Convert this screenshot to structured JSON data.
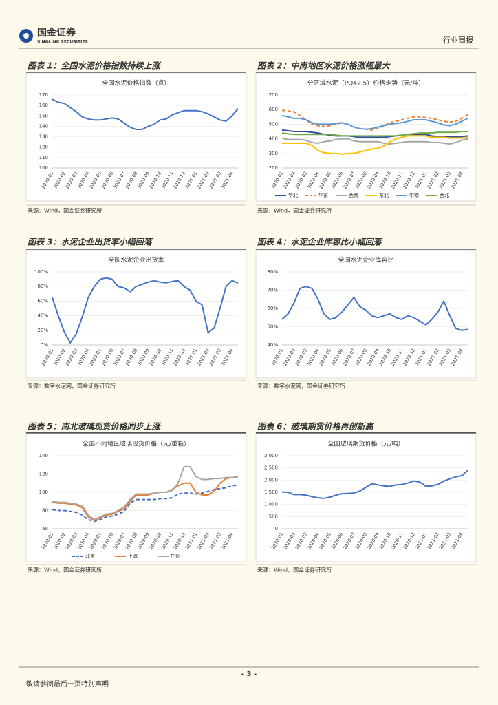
{
  "header": {
    "logo_cn": "国金证券",
    "logo_en": "SINOLINK SECURITIES",
    "section": "行业周报"
  },
  "chart_data": [
    {
      "type": "line",
      "caption": "图表 1：全国水泥价格指数持续上涨",
      "title": "全国水泥价格指数（点）",
      "source": "来源：Wind，国金证券研究所",
      "categories": [
        "2020-01",
        null,
        "2020-02",
        null,
        "2020-03",
        null,
        "2020-04",
        null,
        "2020-05",
        null,
        "2020-06",
        null,
        "2020-07",
        null,
        "2020-08",
        null,
        "2020-09",
        null,
        "2020-10",
        null,
        "2020-11",
        null,
        "2020-12",
        null,
        "2021-01",
        null,
        "2021-02",
        null,
        "2021-03",
        null,
        "2021-04",
        null
      ],
      "values": [
        166,
        163,
        162,
        158,
        154,
        149,
        147,
        146,
        146,
        147,
        148,
        147,
        143,
        139,
        137,
        137,
        140,
        142,
        146,
        147,
        151,
        153,
        155,
        155,
        155,
        154,
        152,
        149,
        146,
        145,
        150,
        157
      ],
      "color": "#4472c4",
      "ylim": [
        100,
        170
      ],
      "yticks": [
        100,
        110,
        120,
        130,
        140,
        150,
        160,
        170
      ],
      "grid": true
    },
    {
      "type": "line",
      "caption": "图表 2：中南地区水泥价格涨幅最大",
      "title": "分区域水泥（PO42.5）价格走势（元/吨）",
      "source": "来源：Wind，国金证券研究所",
      "categories": [
        "2020-01",
        null,
        "2020-02",
        null,
        "2020-03",
        null,
        "2020-04",
        null,
        "2020-05",
        null,
        "2020-06",
        null,
        "2020-07",
        null,
        "2020-08",
        null,
        "2020-09",
        null,
        "2020-10",
        null,
        "2020-11",
        null,
        "2020-12",
        null,
        "2021-01",
        null,
        "2021-02",
        null,
        "2021-03",
        null,
        "2021-04",
        null
      ],
      "series": [
        {
          "name": "华北",
          "color": "#2f4f99",
          "values": [
            460,
            455,
            450,
            450,
            450,
            445,
            440,
            430,
            425,
            420,
            420,
            420,
            415,
            410,
            410,
            410,
            410,
            410,
            415,
            420,
            425,
            430,
            430,
            430,
            430,
            420,
            415,
            415,
            415,
            415,
            415,
            420
          ]
        },
        {
          "name": "华东",
          "color": "#ed7d31",
          "dash": true,
          "values": [
            595,
            590,
            585,
            560,
            530,
            500,
            490,
            485,
            490,
            500,
            510,
            500,
            480,
            470,
            465,
            460,
            470,
            490,
            510,
            520,
            530,
            540,
            550,
            550,
            545,
            540,
            530,
            520,
            515,
            520,
            540,
            565
          ]
        },
        {
          "name": "西南",
          "color": "#a5a5a5",
          "values": [
            405,
            395,
            395,
            395,
            390,
            375,
            370,
            380,
            385,
            395,
            400,
            400,
            385,
            380,
            380,
            380,
            380,
            370,
            365,
            370,
            375,
            380,
            380,
            380,
            380,
            375,
            375,
            370,
            365,
            375,
            390,
            400
          ]
        },
        {
          "name": "东北",
          "color": "#ffc000",
          "values": [
            370,
            370,
            370,
            370,
            370,
            355,
            320,
            305,
            300,
            300,
            295,
            300,
            300,
            310,
            320,
            330,
            335,
            350,
            380,
            400,
            410,
            420,
            420,
            420,
            420,
            410,
            410,
            410,
            405,
            405,
            405,
            410
          ]
        },
        {
          "name": "中南",
          "color": "#5b9bd5",
          "values": [
            560,
            550,
            540,
            540,
            530,
            510,
            500,
            500,
            500,
            505,
            510,
            500,
            480,
            470,
            465,
            470,
            480,
            490,
            500,
            505,
            510,
            520,
            530,
            530,
            530,
            520,
            510,
            495,
            490,
            500,
            520,
            540
          ]
        },
        {
          "name": "西北",
          "color": "#70ad47",
          "values": [
            440,
            435,
            430,
            430,
            430,
            430,
            430,
            430,
            430,
            425,
            420,
            420,
            420,
            420,
            420,
            420,
            420,
            420,
            420,
            420,
            425,
            430,
            435,
            440,
            440,
            440,
            445,
            445,
            445,
            445,
            450,
            450
          ]
        }
      ],
      "ylim": [
        200,
        700
      ],
      "yticks": [
        200,
        300,
        400,
        500,
        600,
        700
      ],
      "grid": true,
      "legend": "bottom"
    },
    {
      "type": "line",
      "caption": "图表 3：水泥企业出货率小幅回落",
      "title": "全国水泥企业出货率",
      "source": "来源：数字水泥网，国金证券研究所",
      "categories": [
        "2020-01",
        null,
        "2020-02",
        null,
        "2020-03",
        null,
        "2020-04",
        null,
        "2020-05",
        null,
        "2020-06",
        null,
        "2020-07",
        null,
        "2020-08",
        null,
        "2020-09",
        null,
        "2020-10",
        null,
        "2020-11",
        null,
        "2020-12",
        null,
        "2021-01",
        null,
        "2021-02",
        null,
        "2021-03",
        null,
        "2021-04",
        null
      ],
      "values": [
        65,
        40,
        18,
        3,
        15,
        38,
        65,
        80,
        90,
        92,
        90,
        80,
        78,
        73,
        80,
        83,
        86,
        88,
        86,
        85,
        87,
        88,
        80,
        75,
        60,
        55,
        17,
        23,
        50,
        80,
        88,
        85
      ],
      "color": "#4472c4",
      "ylim": [
        0,
        100
      ],
      "yticks": [
        {
          "value": 0,
          "label": "0%"
        },
        {
          "value": 20,
          "label": "20%"
        },
        {
          "value": 40,
          "label": "40%"
        },
        {
          "value": 60,
          "label": "60%"
        },
        {
          "value": 80,
          "label": "80%"
        },
        {
          "value": 100,
          "label": "100%"
        }
      ],
      "grid": true
    },
    {
      "type": "line",
      "caption": "图表 4：水泥企业库容比小幅回落",
      "title": "全国水泥企业库容比",
      "source": "来源：数字水泥网，国金证券研究所",
      "categories": [
        "2020-01",
        null,
        "2020-02",
        null,
        "2020-03",
        null,
        "2020-04",
        null,
        "2020-05",
        null,
        "2020-06",
        null,
        "2020-07",
        null,
        "2020-08",
        null,
        "2020-09",
        null,
        "2020-10",
        null,
        "2020-11",
        null,
        "2020-12",
        null,
        "2021-01",
        null,
        "2021-02",
        null,
        "2021-03",
        null,
        "2021-04",
        null
      ],
      "values": [
        54,
        57,
        63,
        71,
        72,
        71,
        65,
        57,
        54,
        55,
        58,
        62,
        66,
        61,
        59,
        56,
        55,
        56,
        57,
        55,
        54,
        56,
        55,
        53,
        51,
        54,
        58,
        64,
        56,
        49,
        48,
        48.5
      ],
      "color": "#4472c4",
      "ylim": [
        40,
        80
      ],
      "yticks": [
        {
          "value": 40,
          "label": "40%"
        },
        {
          "value": 50,
          "label": "50%"
        },
        {
          "value": 60,
          "label": "60%"
        },
        {
          "value": 70,
          "label": "70%"
        },
        {
          "value": 80,
          "label": "80%"
        }
      ],
      "grid": true
    },
    {
      "type": "line",
      "caption": "图表 5：南北玻璃现货价格同步上涨",
      "title": "全国不同地区玻璃现货价格（元/重箱）",
      "source": "来源：Wind，国金证券研究所",
      "categories": [
        "2020-01",
        null,
        "2020-02",
        null,
        "2020-03",
        null,
        "2020-04",
        null,
        "2020-05",
        null,
        "2020-06",
        null,
        "2020-07",
        null,
        "2020-08",
        null,
        "2020-09",
        null,
        "2020-10",
        null,
        "2020-11",
        null,
        "2020-12",
        null,
        "2021-01",
        null,
        "2021-02",
        null,
        "2021-03",
        null,
        "2021-04",
        null
      ],
      "series": [
        {
          "name": "北京",
          "color": "#4472c4",
          "dash": true,
          "values": [
            81,
            80,
            80,
            79,
            78,
            75,
            70,
            68,
            70,
            73,
            74,
            76,
            79,
            88,
            92,
            92,
            92,
            92,
            93,
            93,
            94,
            98,
            99,
            99,
            98,
            99,
            101,
            103,
            104,
            105,
            107,
            108
          ]
        },
        {
          "name": "上海",
          "color": "#ed7d31",
          "values": [
            89,
            88,
            88,
            87,
            86,
            83,
            73,
            69,
            72,
            75,
            76,
            79,
            82,
            90,
            97,
            97,
            97,
            99,
            100,
            100,
            103,
            107,
            110,
            110,
            100,
            97,
            97,
            101,
            110,
            115,
            116,
            117
          ]
        },
        {
          "name": "广州",
          "color": "#a5a5a5",
          "values": [
            90,
            89,
            89,
            88,
            87,
            85,
            75,
            70,
            73,
            76,
            77,
            80,
            84,
            92,
            98,
            98,
            98,
            99,
            100,
            100,
            102,
            110,
            128,
            128,
            117,
            114,
            114,
            115,
            115,
            116,
            116,
            117
          ]
        }
      ],
      "ylim": [
        60,
        140
      ],
      "yticks": [
        60,
        80,
        100,
        120,
        140
      ],
      "grid": true,
      "legend": "bottom"
    },
    {
      "type": "line",
      "caption": "图表 6：玻璃期货价格再创新高",
      "title": "全国玻璃期货价格（元/吨）",
      "source": "来源：Wind，国金证券研究所",
      "categories": [
        "2020-01",
        null,
        "2020-02",
        null,
        "2020-03",
        null,
        "2020-04",
        null,
        "2020-05",
        null,
        "2020-06",
        null,
        "2020-07",
        null,
        "2020-08",
        null,
        "2020-09",
        null,
        "2020-10",
        null,
        "2020-11",
        null,
        "2020-12",
        null,
        "2021-01",
        null,
        "2021-02",
        null,
        "2021-03",
        null,
        "2021-04",
        null
      ],
      "values": [
        1510,
        1500,
        1400,
        1410,
        1380,
        1320,
        1270,
        1250,
        1300,
        1380,
        1440,
        1450,
        1470,
        1550,
        1700,
        1850,
        1800,
        1760,
        1740,
        1800,
        1820,
        1880,
        1960,
        1920,
        1750,
        1760,
        1820,
        1960,
        2050,
        2130,
        2180,
        2400
      ],
      "color": "#4472c4",
      "ylim": [
        0,
        3000
      ],
      "yticks": [
        0,
        500,
        {
          "value": 1000,
          "label": "1,000"
        },
        {
          "value": 1500,
          "label": "1,500"
        },
        {
          "value": 2000,
          "label": "2,000"
        },
        {
          "value": 2500,
          "label": "2,500"
        },
        {
          "value": 3000,
          "label": "3,000"
        }
      ],
      "grid": true
    }
  ],
  "footer": {
    "page": "- 3 -",
    "disclaimer": "敬请参阅最后一页特别声明"
  }
}
